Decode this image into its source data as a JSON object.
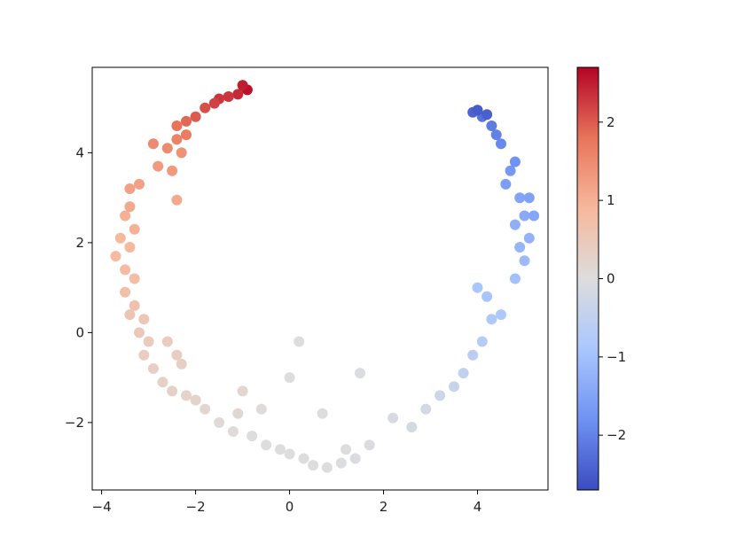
{
  "chart_data": {
    "type": "scatter",
    "title": "",
    "xlabel": "",
    "ylabel": "",
    "xlim": [
      -4.2,
      5.5
    ],
    "ylim": [
      -3.5,
      5.9
    ],
    "x_ticks": [
      -4,
      -2,
      0,
      2,
      4
    ],
    "x_tick_labels": [
      "−4",
      "−2",
      "0",
      "2",
      "4"
    ],
    "y_ticks": [
      -2,
      0,
      2,
      4
    ],
    "y_tick_labels": [
      "−2",
      "0",
      "2",
      "4"
    ],
    "colormap": "coolwarm",
    "colormap_stops": [
      "#3b4cc0",
      "#6f92f3",
      "#aac7fd",
      "#dddddd",
      "#f7b89c",
      "#e7745b",
      "#b40426"
    ],
    "colorbar": {
      "range": [
        -2.7,
        2.7
      ],
      "ticks": [
        -2,
        -1,
        0,
        1,
        2
      ],
      "tick_labels": [
        "−2",
        "−1",
        "0",
        "1",
        "2"
      ]
    },
    "grid": false,
    "points": [
      {
        "x": -0.9,
        "y": 5.4,
        "c": 2.6
      },
      {
        "x": -1.0,
        "y": 5.5,
        "c": 2.5
      },
      {
        "x": -1.1,
        "y": 5.3,
        "c": 2.4
      },
      {
        "x": -1.3,
        "y": 5.25,
        "c": 2.3
      },
      {
        "x": -1.5,
        "y": 5.2,
        "c": 2.3
      },
      {
        "x": -1.6,
        "y": 5.1,
        "c": 2.2
      },
      {
        "x": -1.8,
        "y": 5.0,
        "c": 2.1
      },
      {
        "x": -2.0,
        "y": 4.8,
        "c": 2.0
      },
      {
        "x": -2.2,
        "y": 4.7,
        "c": 1.9
      },
      {
        "x": -2.4,
        "y": 4.6,
        "c": 1.8
      },
      {
        "x": -2.2,
        "y": 4.4,
        "c": 1.7
      },
      {
        "x": -2.4,
        "y": 4.3,
        "c": 1.6
      },
      {
        "x": -2.9,
        "y": 4.2,
        "c": 1.5
      },
      {
        "x": -2.6,
        "y": 4.1,
        "c": 1.5
      },
      {
        "x": -2.3,
        "y": 4.0,
        "c": 1.4
      },
      {
        "x": -2.8,
        "y": 3.7,
        "c": 1.3
      },
      {
        "x": -2.5,
        "y": 3.6,
        "c": 1.3
      },
      {
        "x": -3.2,
        "y": 3.3,
        "c": 1.2
      },
      {
        "x": -3.4,
        "y": 3.2,
        "c": 1.2
      },
      {
        "x": -2.4,
        "y": 2.95,
        "c": 1.1
      },
      {
        "x": -3.4,
        "y": 2.8,
        "c": 1.1
      },
      {
        "x": -3.5,
        "y": 2.6,
        "c": 1.0
      },
      {
        "x": -3.3,
        "y": 2.3,
        "c": 1.0
      },
      {
        "x": -3.6,
        "y": 2.1,
        "c": 0.9
      },
      {
        "x": -3.4,
        "y": 1.9,
        "c": 0.9
      },
      {
        "x": -3.7,
        "y": 1.7,
        "c": 0.85
      },
      {
        "x": -3.5,
        "y": 1.4,
        "c": 0.8
      },
      {
        "x": -3.3,
        "y": 1.2,
        "c": 0.75
      },
      {
        "x": -3.5,
        "y": 0.9,
        "c": 0.7
      },
      {
        "x": -3.3,
        "y": 0.6,
        "c": 0.65
      },
      {
        "x": -3.4,
        "y": 0.4,
        "c": 0.6
      },
      {
        "x": -3.1,
        "y": 0.3,
        "c": 0.55
      },
      {
        "x": -3.2,
        "y": 0.0,
        "c": 0.5
      },
      {
        "x": -3.0,
        "y": -0.2,
        "c": 0.45
      },
      {
        "x": -2.6,
        "y": -0.2,
        "c": 0.45
      },
      {
        "x": -3.1,
        "y": -0.5,
        "c": 0.4
      },
      {
        "x": -2.4,
        "y": -0.5,
        "c": 0.4
      },
      {
        "x": -2.9,
        "y": -0.8,
        "c": 0.35
      },
      {
        "x": -2.3,
        "y": -0.7,
        "c": 0.35
      },
      {
        "x": -2.7,
        "y": -1.1,
        "c": 0.3
      },
      {
        "x": -2.5,
        "y": -1.3,
        "c": 0.3
      },
      {
        "x": -2.2,
        "y": -1.4,
        "c": 0.25
      },
      {
        "x": -2.0,
        "y": -1.5,
        "c": 0.25
      },
      {
        "x": -1.8,
        "y": -1.7,
        "c": 0.2
      },
      {
        "x": -1.0,
        "y": -1.3,
        "c": 0.2
      },
      {
        "x": -1.1,
        "y": -1.8,
        "c": 0.15
      },
      {
        "x": -1.5,
        "y": -2.0,
        "c": 0.1
      },
      {
        "x": -1.2,
        "y": -2.2,
        "c": 0.05
      },
      {
        "x": -0.6,
        "y": -1.7,
        "c": 0.05
      },
      {
        "x": -0.8,
        "y": -2.3,
        "c": 0.0
      },
      {
        "x": -0.5,
        "y": -2.5,
        "c": 0.0
      },
      {
        "x": -0.2,
        "y": -2.6,
        "c": 0.0
      },
      {
        "x": 0.0,
        "y": -2.7,
        "c": 0.0
      },
      {
        "x": 0.3,
        "y": -2.8,
        "c": 0.0
      },
      {
        "x": 0.5,
        "y": -2.95,
        "c": 0.0
      },
      {
        "x": 0.8,
        "y": -3.0,
        "c": 0.0
      },
      {
        "x": 1.1,
        "y": -2.9,
        "c": -0.05
      },
      {
        "x": 1.4,
        "y": -2.8,
        "c": -0.05
      },
      {
        "x": 1.7,
        "y": -2.5,
        "c": -0.05
      },
      {
        "x": 1.2,
        "y": -2.6,
        "c": 0.0
      },
      {
        "x": 0.7,
        "y": -1.8,
        "c": 0.0
      },
      {
        "x": 0.2,
        "y": -0.2,
        "c": 0.0
      },
      {
        "x": 0.0,
        "y": -1.0,
        "c": 0.0
      },
      {
        "x": 1.5,
        "y": -0.9,
        "c": -0.05
      },
      {
        "x": 2.2,
        "y": -1.9,
        "c": -0.1
      },
      {
        "x": 2.6,
        "y": -2.1,
        "c": -0.15
      },
      {
        "x": 2.9,
        "y": -1.7,
        "c": -0.2
      },
      {
        "x": 3.2,
        "y": -1.4,
        "c": -0.3
      },
      {
        "x": 3.5,
        "y": -1.2,
        "c": -0.4
      },
      {
        "x": 3.7,
        "y": -0.9,
        "c": -0.5
      },
      {
        "x": 3.9,
        "y": -0.5,
        "c": -0.6
      },
      {
        "x": 4.1,
        "y": -0.2,
        "c": -0.7
      },
      {
        "x": 4.3,
        "y": 0.3,
        "c": -0.8
      },
      {
        "x": 4.5,
        "y": 0.4,
        "c": -0.85
      },
      {
        "x": 4.0,
        "y": 1.0,
        "c": -0.9
      },
      {
        "x": 4.2,
        "y": 0.8,
        "c": -0.95
      },
      {
        "x": 4.8,
        "y": 1.2,
        "c": -1.0
      },
      {
        "x": 5.0,
        "y": 1.6,
        "c": -1.1
      },
      {
        "x": 4.9,
        "y": 1.9,
        "c": -1.2
      },
      {
        "x": 5.1,
        "y": 2.1,
        "c": -1.25
      },
      {
        "x": 4.8,
        "y": 2.4,
        "c": -1.3
      },
      {
        "x": 5.0,
        "y": 2.6,
        "c": -1.4
      },
      {
        "x": 5.2,
        "y": 2.6,
        "c": -1.45
      },
      {
        "x": 4.9,
        "y": 3.0,
        "c": -1.5
      },
      {
        "x": 5.1,
        "y": 3.0,
        "c": -1.55
      },
      {
        "x": 4.6,
        "y": 3.3,
        "c": -1.6
      },
      {
        "x": 4.7,
        "y": 3.6,
        "c": -1.7
      },
      {
        "x": 4.8,
        "y": 3.8,
        "c": -1.8
      },
      {
        "x": 4.5,
        "y": 4.2,
        "c": -1.9
      },
      {
        "x": 4.4,
        "y": 4.4,
        "c": -2.0
      },
      {
        "x": 4.3,
        "y": 4.6,
        "c": -2.1
      },
      {
        "x": 4.1,
        "y": 4.8,
        "c": -2.2
      },
      {
        "x": 3.9,
        "y": 4.9,
        "c": -2.4
      },
      {
        "x": 4.0,
        "y": 4.95,
        "c": -2.5
      },
      {
        "x": 4.2,
        "y": 4.85,
        "c": -2.45
      }
    ]
  }
}
